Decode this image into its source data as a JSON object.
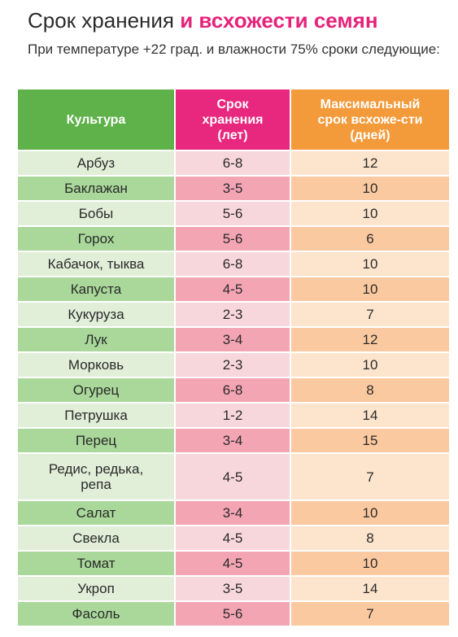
{
  "title": {
    "part1": "Срок хранения ",
    "part2": "и всхожести семян"
  },
  "subtitle": "При температуре +22 град. и влажности 75% сроки следующие:",
  "colors": {
    "green": "#5fb14a",
    "pink": "#e8277f",
    "orange": "#f39a3a"
  },
  "table": {
    "headers": [
      "Культура",
      "Срок хранения (лет)",
      "Максимальный срок всхоже-сти (дней)"
    ],
    "rows": [
      [
        "Арбуз",
        "6-8",
        "12"
      ],
      [
        "Баклажан",
        "3-5",
        "10"
      ],
      [
        "Бобы",
        "5-6",
        "10"
      ],
      [
        "Горох",
        "5-6",
        "6"
      ],
      [
        "Кабачок, тыква",
        "6-8",
        "10"
      ],
      [
        "Капуста",
        "4-5",
        "10"
      ],
      [
        "Кукуруза",
        "2-3",
        "7"
      ],
      [
        "Лук",
        "3-4",
        "12"
      ],
      [
        "Морковь",
        "2-3",
        "10"
      ],
      [
        "Огурец",
        "6-8",
        "8"
      ],
      [
        "Петрушка",
        "1-2",
        "14"
      ],
      [
        "Перец",
        "3-4",
        "15"
      ],
      [
        "Редис, редька, репа",
        "4-5",
        "7"
      ],
      [
        "Салат",
        "3-4",
        "10"
      ],
      [
        "Свекла",
        "4-5",
        "8"
      ],
      [
        "Томат",
        "4-5",
        "10"
      ],
      [
        "Укроп",
        "3-5",
        "14"
      ],
      [
        "Фасоль",
        "5-6",
        "7"
      ]
    ]
  }
}
